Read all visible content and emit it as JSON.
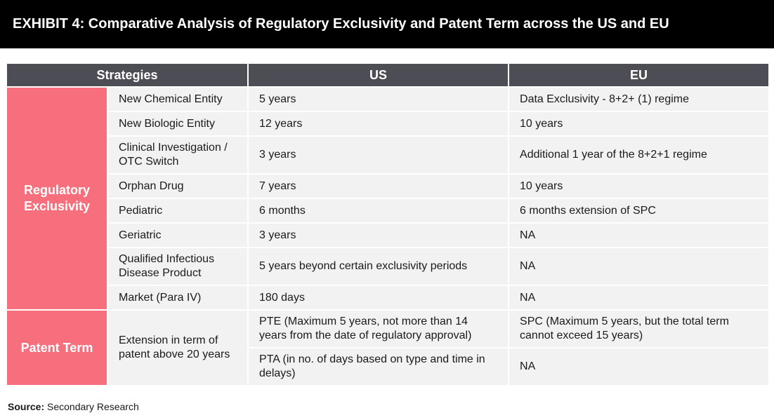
{
  "title": "EXHIBIT 4: Comparative Analysis of Regulatory Exclusivity and Patent Term across the US and EU",
  "headers": {
    "strategies": "Strategies",
    "us": "US",
    "eu": "EU"
  },
  "groups": {
    "regulatory": "Regulatory Exclusivity",
    "patent": "Patent Term"
  },
  "rows": [
    {
      "strategy": "New Chemical Entity",
      "us": "5 years",
      "eu": "Data Exclusivity - 8+2+ (1) regime"
    },
    {
      "strategy": "New Biologic Entity",
      "us": "12 years",
      "eu": "10 years"
    },
    {
      "strategy": "Clinical Investigation / OTC Switch",
      "us": "3 years",
      "eu": "Additional 1 year of the 8+2+1 regime"
    },
    {
      "strategy": "Orphan Drug",
      "us": "7 years",
      "eu": "10 years"
    },
    {
      "strategy": "Pediatric",
      "us": "6 months",
      "eu": "6 months extension of SPC"
    },
    {
      "strategy": "Geriatric",
      "us": "3 years",
      "eu": "NA"
    },
    {
      "strategy": "Qualified Infectious Disease Product",
      "us": "5 years beyond certain exclusivity periods",
      "eu": "NA"
    },
    {
      "strategy": "Market (Para IV)",
      "us": "180 days",
      "eu": "NA"
    }
  ],
  "patent": {
    "strategy": "Extension in term of patent above 20 years",
    "rows": [
      {
        "us": "PTE (Maximum 5 years, not more than 14 years from the date of regulatory approval)",
        "eu": "SPC (Maximum 5 years, but the total term cannot exceed 15 years)"
      },
      {
        "us": "PTA (in no. of days based on type and time in delays)",
        "eu": "NA"
      }
    ]
  },
  "source": {
    "label": "Source:",
    "text": " Secondary Research"
  },
  "colors": {
    "header": "#4d4d55",
    "group": "#f76f7c",
    "cell": "#f2f2f2",
    "title_bg": "#000000"
  }
}
